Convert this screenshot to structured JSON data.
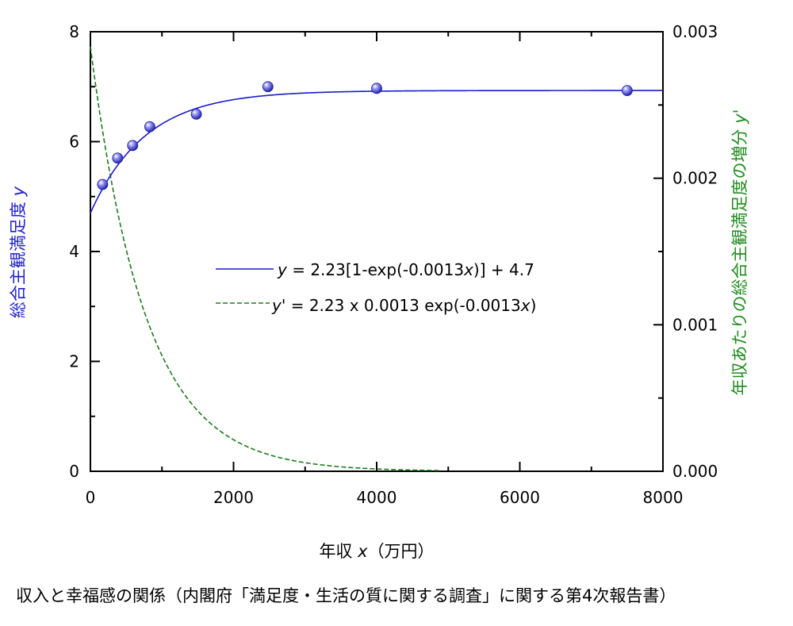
{
  "chart_data": {
    "type": "scatter",
    "caption": "収入と幸福感の関係（内閣府「満足度・生活の質に関する調査」に関する第4次報告書）",
    "xlabel": "年収 x（万円）",
    "xlabel_parts": {
      "pre": "年収 ",
      "var": "x",
      "post": "（万円）"
    },
    "ylabel_left": "総合主観満足度 y",
    "ylabel_left_parts": {
      "pre": "総合主観満足度 ",
      "var": "y"
    },
    "ylabel_right": "年収あたりの総合主観満足度の増分 y'",
    "ylabel_right_parts": {
      "pre": "年収あたりの総合主観満足度の増分 ",
      "var": "y'"
    },
    "xlim": [
      0,
      8000
    ],
    "ylim_left": [
      0,
      8
    ],
    "ylim_right": [
      0,
      0.003
    ],
    "x_ticks": [
      "0",
      "2000",
      "4000",
      "6000",
      "8000"
    ],
    "y_left_ticks": [
      "0",
      "2",
      "4",
      "6",
      "8"
    ],
    "y_right_ticks": [
      "0.000",
      "0.001",
      "0.002",
      "0.003"
    ],
    "x_tick_values": [
      0,
      2000,
      4000,
      6000,
      8000
    ],
    "y_left_tick_values": [
      0,
      2,
      4,
      6,
      8
    ],
    "y_right_tick_values": [
      0,
      0.001,
      0.002,
      0.003
    ],
    "points": {
      "name": "総合主観満足度",
      "x": [
        170,
        380,
        590,
        830,
        1480,
        2480,
        4000,
        7500
      ],
      "y": [
        5.22,
        5.7,
        5.93,
        6.27,
        6.5,
        7.0,
        6.97,
        6.93
      ],
      "color": "#3b3bdc"
    },
    "series": [
      {
        "name": "fit",
        "label": "y = 2.23[1-exp(-0.0013x)] + 4.7",
        "label_parts": [
          "y",
          " = 2.23[1-exp(-0.0013",
          "x",
          ")] + 4.7"
        ],
        "a": 2.23,
        "b": 0.0013,
        "c": 4.7,
        "axis": "left",
        "style": "solid",
        "color": "#1a1acc"
      },
      {
        "name": "derivative",
        "label": "y' = 2.23 x 0.0013 exp(-0.0013x)",
        "label_parts": [
          "y'",
          " = 2.23 x 0.0013 exp(-0.0013",
          "x",
          ")"
        ],
        "a": 2.23,
        "b": 0.0013,
        "axis": "right",
        "style": "dashed",
        "color": "#1e7a1e"
      }
    ],
    "colors": {
      "axis": "#000000",
      "left_label": "#2222cc",
      "right_label": "#1e8c1e"
    }
  }
}
